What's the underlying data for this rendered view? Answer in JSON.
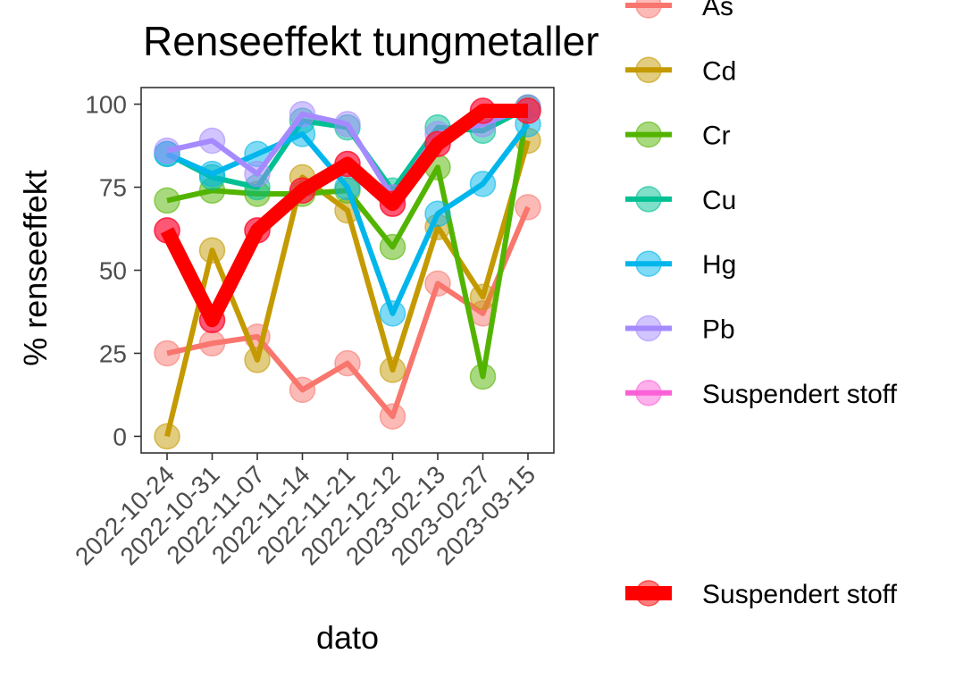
{
  "chart_data": {
    "type": "line",
    "title": "Renseeffekt tungmetaller",
    "xlabel": "dato",
    "ylabel": "% renseeffekt",
    "categories": [
      "2022-10-24",
      "2022-10-31",
      "2022-11-07",
      "2022-11-14",
      "2022-11-21",
      "2022-12-12",
      "2023-02-13",
      "2023-02-27",
      "2023-03-15"
    ],
    "y_ticks": [
      0,
      25,
      50,
      75,
      100
    ],
    "ylim": [
      -5,
      105
    ],
    "grid": false,
    "legend_position": "right",
    "series": [
      {
        "name": "As",
        "color": "#F8766D",
        "values": [
          25,
          28,
          30,
          14,
          22,
          6,
          46,
          37,
          69
        ]
      },
      {
        "name": "Cd",
        "color": "#C49A00",
        "values": [
          0,
          56,
          23,
          78,
          68,
          20,
          63,
          42,
          89
        ]
      },
      {
        "name": "Cr",
        "color": "#53B400",
        "values": [
          71,
          74,
          73,
          73,
          74,
          57,
          81,
          18,
          99
        ]
      },
      {
        "name": "Cu",
        "color": "#00C094",
        "values": [
          85,
          78,
          75,
          95,
          93,
          74,
          93,
          92,
          99
        ]
      },
      {
        "name": "Hg",
        "color": "#00B6EB",
        "values": [
          85,
          79,
          85,
          91,
          75,
          37,
          67,
          76,
          94
        ]
      },
      {
        "name": "Pb",
        "color": "#A58AFF",
        "values": [
          86,
          89,
          79,
          97,
          94,
          72,
          91,
          94,
          99
        ]
      },
      {
        "name": "Suspendert stoff",
        "color": "#FB61D7",
        "values": [
          62,
          35,
          62,
          74,
          82,
          70,
          88,
          98,
          98
        ]
      }
    ],
    "highlight_series": {
      "name": "Suspendert stoff",
      "color": "#FF0000",
      "values": [
        62,
        35,
        62,
        74,
        82,
        70,
        88,
        98,
        98
      ]
    }
  }
}
